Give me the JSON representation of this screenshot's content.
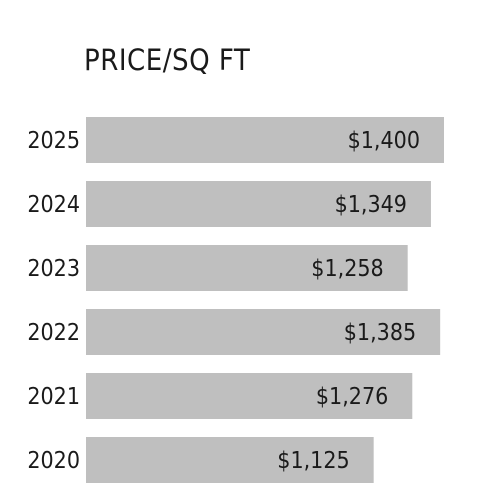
{
  "chart_data": {
    "type": "bar",
    "orientation": "horizontal",
    "title": "PRICE/SQ FT",
    "categories": [
      "2025",
      "2024",
      "2023",
      "2022",
      "2021",
      "2020"
    ],
    "values": [
      1400,
      1349,
      1258,
      1385,
      1276,
      1125
    ],
    "value_labels": [
      "$1,400",
      "$1,349",
      "$1,258",
      "$1,385",
      "$1,276",
      "$1,125"
    ],
    "bar_color": "#bfbfbf",
    "grid": false,
    "legend": "none"
  }
}
